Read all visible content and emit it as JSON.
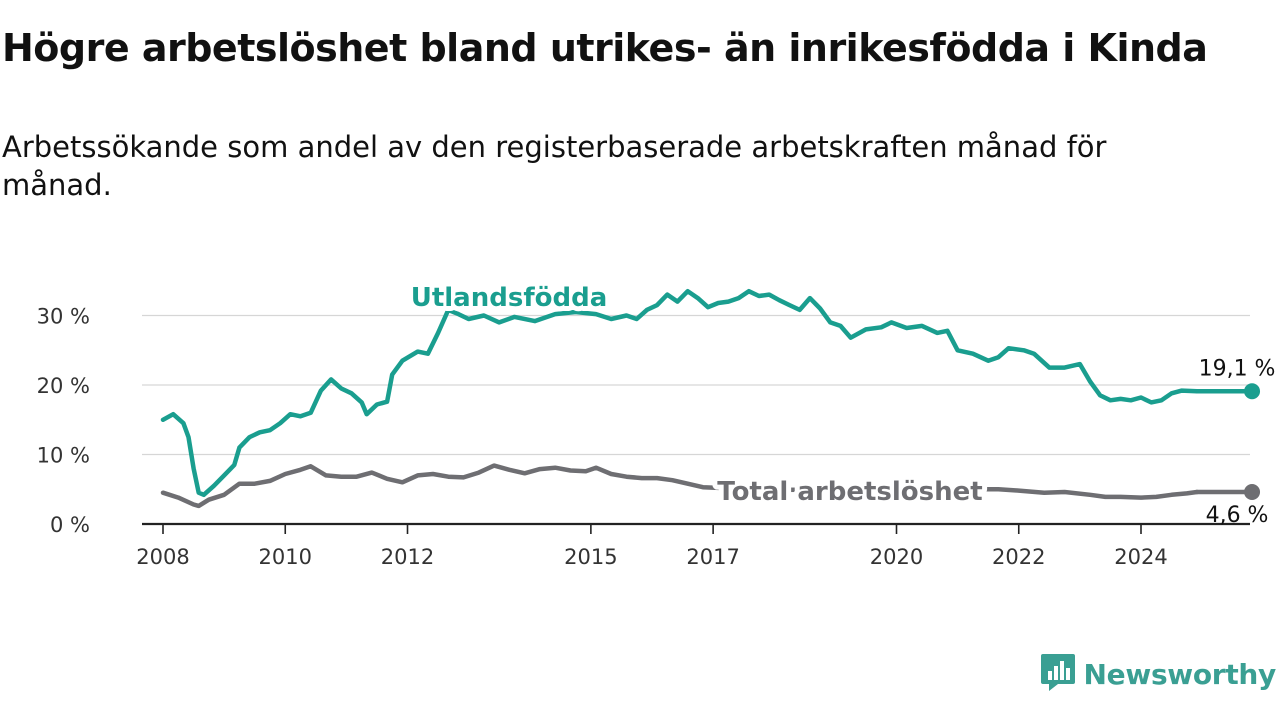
{
  "header": {
    "title": "Högre arbetslöshet bland utrikes- än inrikesfödda i Kinda",
    "subtitle": "Arbetssökande som andel av den registerbaserade arbetskraften månad för månad."
  },
  "brand": {
    "name": "Newsworthy",
    "icon": "newsworthy-logo-icon",
    "color": "#3a9f93"
  },
  "chart_data": {
    "type": "line",
    "title": "Högre arbetslöshet bland utrikes- än inrikesfödda i Kinda",
    "subtitle": "Arbetssökande som andel av den registerbaserade arbetskraften månad för månad.",
    "xlabel": "",
    "ylabel": "",
    "x_ticks": [
      "2008",
      "2010",
      "2012",
      "2015",
      "2017",
      "2020",
      "2022",
      "2024"
    ],
    "y_ticks": [
      "0 %",
      "10 %",
      "20 %",
      "30 %"
    ],
    "ylim": [
      0,
      35
    ],
    "grid": "horizontal",
    "legend": "inline labels",
    "series": [
      {
        "name": "Utlandsfödda",
        "color": "#1a9e8f",
        "end_label": "19,1 %",
        "points": [
          [
            "2008-01",
            15
          ],
          [
            "2008-03",
            15.8
          ],
          [
            "2008-05",
            14.5
          ],
          [
            "2008-06",
            12.5
          ],
          [
            "2008-07",
            8
          ],
          [
            "2008-08",
            4.5
          ],
          [
            "2008-09",
            4.2
          ],
          [
            "2008-11",
            5.5
          ],
          [
            "2009-01",
            7
          ],
          [
            "2009-03",
            8.5
          ],
          [
            "2009-04",
            11
          ],
          [
            "2009-06",
            12.5
          ],
          [
            "2009-08",
            13.2
          ],
          [
            "2009-10",
            13.5
          ],
          [
            "2009-12",
            14.5
          ],
          [
            "2010-02",
            15.8
          ],
          [
            "2010-04",
            15.5
          ],
          [
            "2010-06",
            16
          ],
          [
            "2010-08",
            19.2
          ],
          [
            "2010-10",
            20.8
          ],
          [
            "2010-12",
            19.5
          ],
          [
            "2011-02",
            18.8
          ],
          [
            "2011-04",
            17.5
          ],
          [
            "2011-05",
            15.8
          ],
          [
            "2011-07",
            17.2
          ],
          [
            "2011-09",
            17.6
          ],
          [
            "2011-10",
            21.5
          ],
          [
            "2011-12",
            23.5
          ],
          [
            "2012-03",
            24.8
          ],
          [
            "2012-05",
            24.5
          ],
          [
            "2012-07",
            27.5
          ],
          [
            "2012-09",
            30.8
          ],
          [
            "2012-11",
            30.2
          ],
          [
            "2013-01",
            29.5
          ],
          [
            "2013-04",
            30
          ],
          [
            "2013-07",
            29
          ],
          [
            "2013-10",
            29.8
          ],
          [
            "2014-02",
            29.2
          ],
          [
            "2014-06",
            30.2
          ],
          [
            "2014-10",
            30.5
          ],
          [
            "2015-02",
            30.2
          ],
          [
            "2015-05",
            29.5
          ],
          [
            "2015-08",
            30
          ],
          [
            "2015-10",
            29.5
          ],
          [
            "2015-12",
            30.8
          ],
          [
            "2016-02",
            31.5
          ],
          [
            "2016-04",
            33
          ],
          [
            "2016-06",
            32
          ],
          [
            "2016-08",
            33.5
          ],
          [
            "2016-10",
            32.5
          ],
          [
            "2016-12",
            31.2
          ],
          [
            "2017-02",
            31.8
          ],
          [
            "2017-04",
            32
          ],
          [
            "2017-06",
            32.5
          ],
          [
            "2017-08",
            33.5
          ],
          [
            "2017-10",
            32.8
          ],
          [
            "2017-12",
            33
          ],
          [
            "2018-02",
            32.2
          ],
          [
            "2018-04",
            31.5
          ],
          [
            "2018-06",
            30.8
          ],
          [
            "2018-08",
            32.5
          ],
          [
            "2018-10",
            31
          ],
          [
            "2018-12",
            29
          ],
          [
            "2019-02",
            28.5
          ],
          [
            "2019-04",
            26.8
          ],
          [
            "2019-07",
            28
          ],
          [
            "2019-10",
            28.3
          ],
          [
            "2019-12",
            29
          ],
          [
            "2020-03",
            28.2
          ],
          [
            "2020-06",
            28.5
          ],
          [
            "2020-09",
            27.5
          ],
          [
            "2020-11",
            27.8
          ],
          [
            "2021-01",
            25
          ],
          [
            "2021-04",
            24.5
          ],
          [
            "2021-07",
            23.5
          ],
          [
            "2021-09",
            24
          ],
          [
            "2021-11",
            25.3
          ],
          [
            "2022-02",
            25
          ],
          [
            "2022-04",
            24.5
          ],
          [
            "2022-07",
            22.5
          ],
          [
            "2022-10",
            22.5
          ],
          [
            "2023-01",
            23
          ],
          [
            "2023-03",
            20.5
          ],
          [
            "2023-05",
            18.5
          ],
          [
            "2023-07",
            17.8
          ],
          [
            "2023-09",
            18
          ],
          [
            "2023-11",
            17.8
          ],
          [
            "2024-01",
            18.2
          ],
          [
            "2024-03",
            17.5
          ],
          [
            "2024-05",
            17.8
          ],
          [
            "2024-07",
            18.8
          ],
          [
            "2024-09",
            19.2
          ],
          [
            "2024-12",
            19.1
          ]
        ]
      },
      {
        "name": "Total arbetslöshet",
        "color": "#6e6e72",
        "end_label": "4,6 %",
        "points": [
          [
            "2008-01",
            4.5
          ],
          [
            "2008-04",
            3.8
          ],
          [
            "2008-07",
            2.8
          ],
          [
            "2008-08",
            2.6
          ],
          [
            "2008-10",
            3.5
          ],
          [
            "2009-01",
            4.2
          ],
          [
            "2009-04",
            5.8
          ],
          [
            "2009-07",
            5.8
          ],
          [
            "2009-10",
            6.2
          ],
          [
            "2010-01",
            7.2
          ],
          [
            "2010-04",
            7.8
          ],
          [
            "2010-06",
            8.3
          ],
          [
            "2010-09",
            7
          ],
          [
            "2010-12",
            6.8
          ],
          [
            "2011-03",
            6.8
          ],
          [
            "2011-06",
            7.4
          ],
          [
            "2011-09",
            6.5
          ],
          [
            "2011-12",
            6
          ],
          [
            "2012-03",
            7
          ],
          [
            "2012-06",
            7.2
          ],
          [
            "2012-09",
            6.8
          ],
          [
            "2012-12",
            6.7
          ],
          [
            "2013-03",
            7.4
          ],
          [
            "2013-06",
            8.4
          ],
          [
            "2013-09",
            7.8
          ],
          [
            "2013-12",
            7.3
          ],
          [
            "2014-03",
            7.9
          ],
          [
            "2014-06",
            8.1
          ],
          [
            "2014-09",
            7.7
          ],
          [
            "2014-12",
            7.6
          ],
          [
            "2015-02",
            8.1
          ],
          [
            "2015-05",
            7.2
          ],
          [
            "2015-08",
            6.8
          ],
          [
            "2015-11",
            6.6
          ],
          [
            "2016-02",
            6.6
          ],
          [
            "2016-05",
            6.3
          ],
          [
            "2016-08",
            5.8
          ],
          [
            "2016-11",
            5.3
          ],
          [
            "2017-02",
            5.2
          ],
          [
            "2017-05",
            5
          ],
          [
            "2017-08",
            4.9
          ],
          [
            "2021-06",
            5
          ],
          [
            "2021-09",
            5
          ],
          [
            "2022-01",
            4.8
          ],
          [
            "2022-06",
            4.5
          ],
          [
            "2022-10",
            4.6
          ],
          [
            "2023-03",
            4.2
          ],
          [
            "2023-06",
            3.9
          ],
          [
            "2023-09",
            3.9
          ],
          [
            "2024-01",
            3.8
          ],
          [
            "2024-04",
            3.9
          ],
          [
            "2024-07",
            4.2
          ],
          [
            "2024-10",
            4.4
          ],
          [
            "2024-12",
            4.6
          ]
        ]
      }
    ]
  }
}
